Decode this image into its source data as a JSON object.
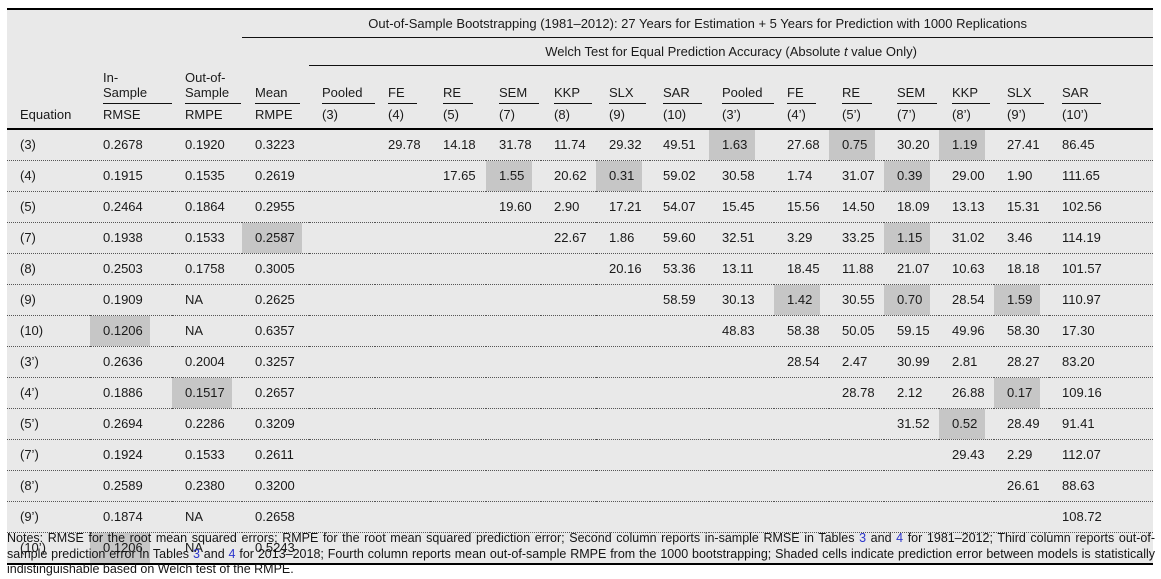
{
  "colors": {
    "table_bg": "#e9e9e9",
    "shade": "#c6c6c6",
    "rule": "#111111",
    "link": "#2b35cc",
    "text": "#1a1a1a"
  },
  "table": {
    "title": "Out-of-Sample Bootstrapping (1981–2012): 27 Years for Estimation + 5 Years for Prediction with 1000 Replications",
    "welch": {
      "prefix": "Welch Test for Equal Prediction Accuracy (Absolute ",
      "italic": "t",
      "suffix": " value Only)"
    },
    "columns": [
      {
        "group": "",
        "sub": "Equation"
      },
      {
        "group": "In-Sample",
        "sub": "RMSE"
      },
      {
        "group": "Out-of-\nSample",
        "sub": "RMPE"
      },
      {
        "group": "Mean",
        "sub": "RMPE"
      },
      {
        "group": "Pooled",
        "sub": "(3)"
      },
      {
        "group": "FE",
        "sub": "(4)"
      },
      {
        "group": "RE",
        "sub": "(5)"
      },
      {
        "group": "SEM",
        "sub": "(7)"
      },
      {
        "group": "KKP",
        "sub": "(8)"
      },
      {
        "group": "SLX",
        "sub": "(9)"
      },
      {
        "group": "SAR",
        "sub": "(10)"
      },
      {
        "group": "Pooled",
        "sub": "(3’)"
      },
      {
        "group": "FE",
        "sub": "(4’)"
      },
      {
        "group": "RE",
        "sub": "(5’)"
      },
      {
        "group": "SEM",
        "sub": "(7’)"
      },
      {
        "group": "KKP",
        "sub": "(8’)"
      },
      {
        "group": "SLX",
        "sub": "(9’)"
      },
      {
        "group": "SAR",
        "sub": "(10’)"
      }
    ],
    "rows": [
      {
        "values": [
          "(3)",
          "0.2678",
          "0.1920",
          "0.3223",
          "",
          "29.78",
          "14.18",
          "31.78",
          "11.74",
          "29.32",
          "49.51",
          "1.63",
          "27.68",
          "0.75",
          "30.20",
          "1.19",
          "27.41",
          "86.45"
        ],
        "shaded": [
          11,
          13,
          15
        ]
      },
      {
        "values": [
          "(4)",
          "0.1915",
          "0.1535",
          "0.2619",
          "",
          "",
          "17.65",
          "1.55",
          "20.62",
          "0.31",
          "59.02",
          "30.58",
          "1.74",
          "31.07",
          "0.39",
          "29.00",
          "1.90",
          "111.65"
        ],
        "shaded": [
          7,
          9,
          14
        ]
      },
      {
        "values": [
          "(5)",
          "0.2464",
          "0.1864",
          "0.2955",
          "",
          "",
          "",
          "19.60",
          "2.90",
          "17.21",
          "54.07",
          "15.45",
          "15.56",
          "14.50",
          "18.09",
          "13.13",
          "15.31",
          "102.56"
        ],
        "shaded": []
      },
      {
        "values": [
          "(7)",
          "0.1938",
          "0.1533",
          "0.2587",
          "",
          "",
          "",
          "",
          "22.67",
          "1.86",
          "59.60",
          "32.51",
          "3.29",
          "33.25",
          "1.15",
          "31.02",
          "3.46",
          "114.19"
        ],
        "shaded": [
          3,
          14
        ]
      },
      {
        "values": [
          "(8)",
          "0.2503",
          "0.1758",
          "0.3005",
          "",
          "",
          "",
          "",
          "",
          "20.16",
          "53.36",
          "13.11",
          "18.45",
          "11.88",
          "21.07",
          "10.63",
          "18.18",
          "101.57"
        ],
        "shaded": []
      },
      {
        "values": [
          "(9)",
          "0.1909",
          "NA",
          "0.2625",
          "",
          "",
          "",
          "",
          "",
          "",
          "58.59",
          "30.13",
          "1.42",
          "30.55",
          "0.70",
          "28.54",
          "1.59",
          "110.97"
        ],
        "shaded": [
          12,
          14,
          16
        ]
      },
      {
        "values": [
          "(10)",
          "0.1206",
          "NA",
          "0.6357",
          "",
          "",
          "",
          "",
          "",
          "",
          "",
          "48.83",
          "58.38",
          "50.05",
          "59.15",
          "49.96",
          "58.30",
          "17.30"
        ],
        "shaded": [
          1
        ]
      },
      {
        "values": [
          "(3’)",
          "0.2636",
          "0.2004",
          "0.3257",
          "",
          "",
          "",
          "",
          "",
          "",
          "",
          "",
          "28.54",
          "2.47",
          "30.99",
          "2.81",
          "28.27",
          "83.20"
        ],
        "shaded": []
      },
      {
        "values": [
          "(4’)",
          "0.1886",
          "0.1517",
          "0.2657",
          "",
          "",
          "",
          "",
          "",
          "",
          "",
          "",
          "",
          "28.78",
          "2.12",
          "26.88",
          "0.17",
          "109.16"
        ],
        "shaded": [
          2,
          16
        ]
      },
      {
        "values": [
          "(5’)",
          "0.2694",
          "0.2286",
          "0.3209",
          "",
          "",
          "",
          "",
          "",
          "",
          "",
          "",
          "",
          "",
          "31.52",
          "0.52",
          "28.49",
          "91.41"
        ],
        "shaded": [
          15
        ]
      },
      {
        "values": [
          "(7’)",
          "0.1924",
          "0.1533",
          "0.2611",
          "",
          "",
          "",
          "",
          "",
          "",
          "",
          "",
          "",
          "",
          "",
          "29.43",
          "2.29",
          "112.07"
        ],
        "shaded": []
      },
      {
        "values": [
          "(8’)",
          "0.2589",
          "0.2380",
          "0.3200",
          "",
          "",
          "",
          "",
          "",
          "",
          "",
          "",
          "",
          "",
          "",
          "",
          "26.61",
          "88.63"
        ],
        "shaded": []
      },
      {
        "values": [
          "(9’)",
          "0.1874",
          "NA",
          "0.2658",
          "",
          "",
          "",
          "",
          "",
          "",
          "",
          "",
          "",
          "",
          "",
          "",
          "",
          "108.72"
        ],
        "shaded": []
      },
      {
        "values": [
          "(10’)",
          "0.1206",
          "NA",
          "0.5243",
          "",
          "",
          "",
          "",
          "",
          "",
          "",
          "",
          "",
          "",
          "",
          "",
          "",
          ""
        ],
        "shaded": [
          1
        ]
      }
    ]
  },
  "notes": {
    "seg1": "Notes: RMSE for the root mean squared errors; RMPE for the root mean squared prediction error; Second column reports in-sample RMSE in Tables ",
    "link1": "3",
    "seg2": " and ",
    "link2": "4",
    "seg3": " for 1981–2012; Third column reports out-of-sample prediction error in Tables ",
    "link3": "3",
    "seg4": " and ",
    "link4": "4",
    "seg5": " for 2013–2018; Fourth column reports mean out-of-sample RMPE from the 1000 bootstrapping; Shaded cells indicate prediction error between models is statistically indistinguishable based on Welch test of the RMPE."
  }
}
